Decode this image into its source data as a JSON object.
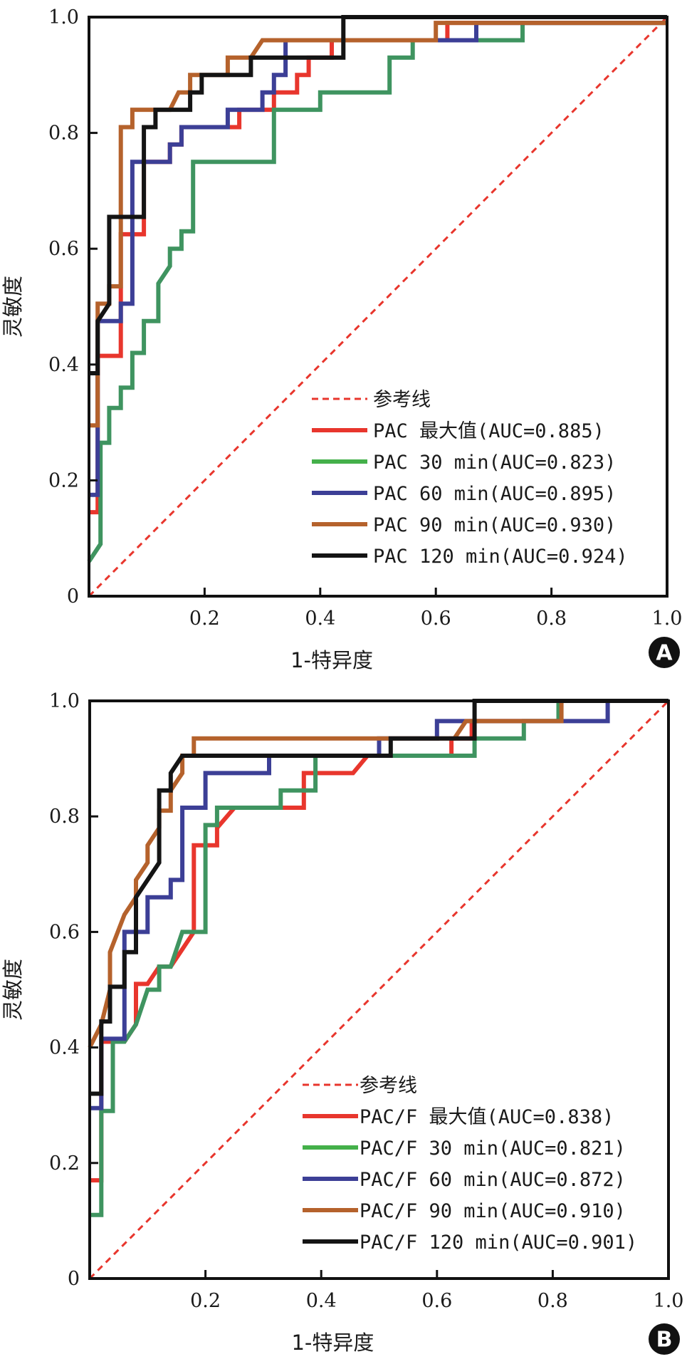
{
  "figure": {
    "panels_count": 2
  },
  "chart_data": [
    {
      "type": "line",
      "panel_label": "A",
      "title": "",
      "xlabel": "1-特异度",
      "ylabel": "灵敏度",
      "xlim": [
        0,
        1
      ],
      "ylim": [
        0,
        1
      ],
      "x_ticks": [
        "0.2",
        "0.4",
        "0.6",
        "0.8",
        "1.0"
      ],
      "x_tick_values": [
        0.2,
        0.4,
        0.6,
        0.8,
        1.0
      ],
      "y_ticks": [
        "0",
        "0.2",
        "0.4",
        "0.6",
        "0.8",
        "1.0"
      ],
      "y_tick_values": [
        0,
        0.2,
        0.4,
        0.6,
        0.8,
        1.0
      ],
      "grid": false,
      "legend_position": "bottom-right",
      "reference_line": {
        "name": "参考线",
        "color": "#e8362d",
        "style": "dashed",
        "x": [
          0,
          1
        ],
        "y": [
          0,
          1
        ]
      },
      "series": [
        {
          "name": "PAC 最大值(AUC=0.885)",
          "auc": 0.885,
          "color": "#e8362d",
          "x": [
            0,
            0.015,
            0.015,
            0.055,
            0.055,
            0.095,
            0.095,
            0.14,
            0.14,
            0.16,
            0.16,
            0.26,
            0.26,
            0.32,
            0.32,
            0.36,
            0.36,
            0.38,
            0.38,
            0.42,
            0.42,
            0.62,
            0.62,
            1.0
          ],
          "y": [
            0.145,
            0.145,
            0.415,
            0.415,
            0.625,
            0.625,
            0.75,
            0.75,
            0.78,
            0.78,
            0.81,
            0.81,
            0.84,
            0.84,
            0.87,
            0.87,
            0.9,
            0.9,
            0.93,
            0.93,
            0.96,
            0.96,
            0.99,
            0.99
          ]
        },
        {
          "name": "PAC 30 min(AUC=0.823)",
          "auc": 0.823,
          "color": "#3f9460",
          "legend_color": "#44b04a",
          "x": [
            0,
            0.02,
            0.02,
            0.035,
            0.035,
            0.055,
            0.055,
            0.075,
            0.075,
            0.095,
            0.095,
            0.12,
            0.12,
            0.14,
            0.14,
            0.16,
            0.16,
            0.18,
            0.18,
            0.32,
            0.32,
            0.4,
            0.4,
            0.52,
            0.52,
            0.56,
            0.56,
            0.75,
            0.75,
            1.0
          ],
          "y": [
            0.06,
            0.09,
            0.265,
            0.265,
            0.325,
            0.325,
            0.36,
            0.36,
            0.42,
            0.42,
            0.475,
            0.475,
            0.54,
            0.57,
            0.6,
            0.6,
            0.63,
            0.63,
            0.75,
            0.75,
            0.84,
            0.84,
            0.87,
            0.87,
            0.93,
            0.93,
            0.96,
            0.96,
            0.99,
            0.99
          ]
        },
        {
          "name": "PAC 60 min(AUC=0.895)",
          "auc": 0.895,
          "color": "#3c3f96",
          "x": [
            0,
            0.015,
            0.015,
            0.055,
            0.055,
            0.075,
            0.075,
            0.095,
            0.095,
            0.14,
            0.14,
            0.16,
            0.16,
            0.24,
            0.24,
            0.3,
            0.3,
            0.32,
            0.32,
            0.34,
            0.34,
            0.67,
            0.67,
            1.0
          ],
          "y": [
            0.175,
            0.175,
            0.475,
            0.475,
            0.505,
            0.505,
            0.75,
            0.75,
            0.75,
            0.75,
            0.78,
            0.78,
            0.81,
            0.81,
            0.84,
            0.84,
            0.87,
            0.87,
            0.9,
            0.9,
            0.96,
            0.96,
            0.99,
            0.99
          ]
        },
        {
          "name": "PAC 90 min(AUC=0.930)",
          "auc": 0.93,
          "color": "#b5622c",
          "x": [
            0,
            0.015,
            0.015,
            0.035,
            0.035,
            0.055,
            0.055,
            0.075,
            0.075,
            0.14,
            0.155,
            0.175,
            0.175,
            0.24,
            0.24,
            0.28,
            0.3,
            0.6,
            0.6,
            1.0
          ],
          "y": [
            0.295,
            0.295,
            0.505,
            0.505,
            0.535,
            0.535,
            0.81,
            0.81,
            0.84,
            0.84,
            0.87,
            0.87,
            0.9,
            0.9,
            0.93,
            0.93,
            0.96,
            0.96,
            0.99,
            0.99
          ]
        },
        {
          "name": "PAC 120 min(AUC=0.924)",
          "auc": 0.924,
          "color": "#141414",
          "x": [
            0,
            0.015,
            0.015,
            0.035,
            0.035,
            0.095,
            0.095,
            0.115,
            0.115,
            0.175,
            0.175,
            0.195,
            0.195,
            0.28,
            0.28,
            0.44,
            0.44,
            1.0
          ],
          "y": [
            0.385,
            0.385,
            0.475,
            0.505,
            0.655,
            0.655,
            0.81,
            0.81,
            0.84,
            0.84,
            0.87,
            0.87,
            0.9,
            0.9,
            0.93,
            0.93,
            1.0,
            1.0
          ]
        }
      ]
    },
    {
      "type": "line",
      "panel_label": "B",
      "title": "",
      "xlabel": "1-特异度",
      "ylabel": "灵敏度",
      "xlim": [
        0,
        1
      ],
      "ylim": [
        0,
        1
      ],
      "x_ticks": [
        "0.2",
        "0.4",
        "0.6",
        "0.8",
        "1.0"
      ],
      "x_tick_values": [
        0.2,
        0.4,
        0.6,
        0.8,
        1.0
      ],
      "y_ticks": [
        "0",
        "0.2",
        "0.4",
        "0.6",
        "0.8",
        "1.0"
      ],
      "y_tick_values": [
        0,
        0.2,
        0.4,
        0.6,
        0.8,
        1.0
      ],
      "grid": false,
      "legend_position": "bottom-right",
      "reference_line": {
        "name": "参考线",
        "color": "#e8362d",
        "style": "dashed",
        "x": [
          0,
          1
        ],
        "y": [
          0,
          1
        ]
      },
      "series": [
        {
          "name": "PAC/F 最大值(AUC=0.838)",
          "auc": 0.838,
          "color": "#e8362d",
          "x": [
            0,
            0.02,
            0.02,
            0.06,
            0.08,
            0.08,
            0.1,
            0.12,
            0.14,
            0.16,
            0.18,
            0.18,
            0.22,
            0.22,
            0.25,
            0.37,
            0.37,
            0.455,
            0.48,
            0.625,
            0.625,
            0.66,
            0.66,
            0.81,
            0.81,
            1.0
          ],
          "y": [
            0.17,
            0.17,
            0.41,
            0.41,
            0.44,
            0.51,
            0.51,
            0.54,
            0.54,
            0.57,
            0.6,
            0.75,
            0.75,
            0.78,
            0.815,
            0.815,
            0.875,
            0.875,
            0.905,
            0.905,
            0.935,
            0.935,
            0.965,
            0.965,
            1.0,
            1.0
          ]
        },
        {
          "name": "PAC/F 30 min(AUC=0.821)",
          "auc": 0.821,
          "color": "#3f9460",
          "legend_color": "#44b04a",
          "x": [
            0,
            0.02,
            0.02,
            0.04,
            0.04,
            0.06,
            0.08,
            0.1,
            0.12,
            0.12,
            0.14,
            0.16,
            0.2,
            0.2,
            0.22,
            0.22,
            0.33,
            0.33,
            0.39,
            0.39,
            0.665,
            0.665,
            0.75,
            0.75,
            0.81,
            0.81,
            1.0
          ],
          "y": [
            0.11,
            0.11,
            0.29,
            0.29,
            0.41,
            0.41,
            0.44,
            0.5,
            0.5,
            0.54,
            0.54,
            0.6,
            0.6,
            0.785,
            0.785,
            0.815,
            0.815,
            0.845,
            0.845,
            0.905,
            0.905,
            0.935,
            0.935,
            0.965,
            0.965,
            1.0,
            1.0
          ]
        },
        {
          "name": "PAC/F 60 min(AUC=0.872)",
          "auc": 0.872,
          "color": "#3c3f96",
          "x": [
            0,
            0.02,
            0.02,
            0.06,
            0.06,
            0.1,
            0.1,
            0.14,
            0.14,
            0.16,
            0.16,
            0.2,
            0.2,
            0.31,
            0.31,
            0.5,
            0.5,
            0.6,
            0.6,
            0.895,
            0.895,
            1.0
          ],
          "y": [
            0.295,
            0.295,
            0.415,
            0.415,
            0.6,
            0.6,
            0.66,
            0.66,
            0.69,
            0.69,
            0.815,
            0.815,
            0.875,
            0.875,
            0.905,
            0.905,
            0.935,
            0.935,
            0.965,
            0.965,
            1.0,
            1.0
          ]
        },
        {
          "name": "PAC/F 90 min(AUC=0.910)",
          "auc": 0.91,
          "color": "#b5622c",
          "x": [
            0,
            0.02,
            0.035,
            0.035,
            0.06,
            0.08,
            0.08,
            0.1,
            0.1,
            0.12,
            0.12,
            0.14,
            0.14,
            0.16,
            0.16,
            0.18,
            0.18,
            0.63,
            0.65,
            0.815,
            0.815,
            1.0
          ],
          "y": [
            0.4,
            0.44,
            0.5,
            0.565,
            0.63,
            0.66,
            0.69,
            0.72,
            0.75,
            0.78,
            0.81,
            0.81,
            0.845,
            0.875,
            0.905,
            0.905,
            0.935,
            0.935,
            0.965,
            0.965,
            1.0,
            1.0
          ]
        },
        {
          "name": "PAC/F 120 min(AUC=0.901)",
          "auc": 0.901,
          "color": "#141414",
          "x": [
            0,
            0.02,
            0.02,
            0.035,
            0.035,
            0.06,
            0.06,
            0.08,
            0.08,
            0.12,
            0.12,
            0.14,
            0.14,
            0.16,
            0.52,
            0.52,
            0.665,
            0.665,
            1.0
          ],
          "y": [
            0.32,
            0.32,
            0.445,
            0.445,
            0.505,
            0.505,
            0.565,
            0.565,
            0.66,
            0.72,
            0.845,
            0.845,
            0.875,
            0.905,
            0.905,
            0.935,
            0.935,
            1.0,
            1.0
          ]
        }
      ]
    }
  ]
}
